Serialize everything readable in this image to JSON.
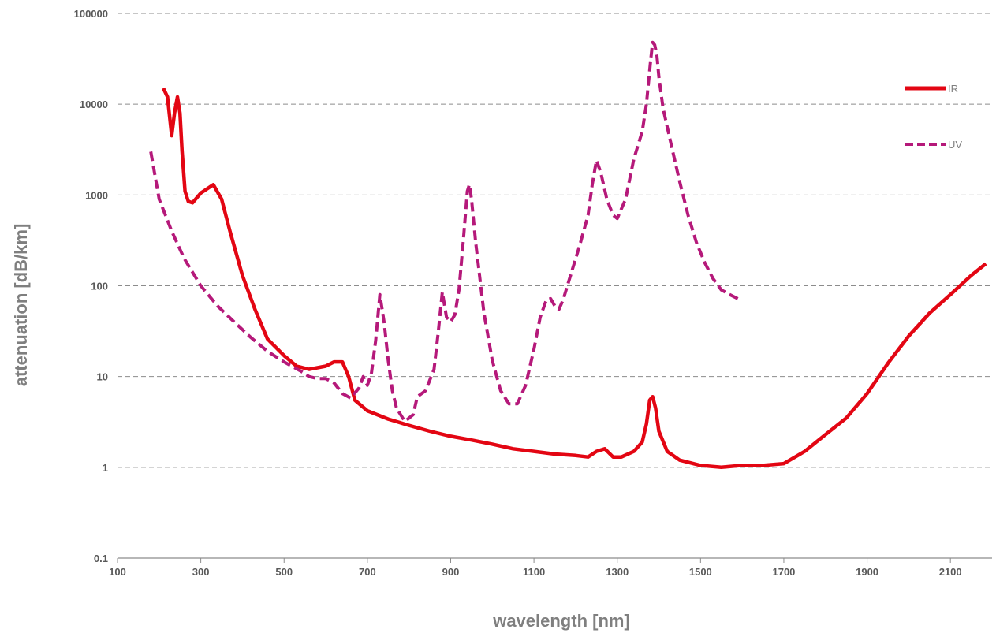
{
  "chart_data": {
    "type": "line",
    "title": "",
    "xlabel": "wavelength [nm]",
    "ylabel": "attenuation [dB/km]",
    "xlim": [
      100,
      2200
    ],
    "ylim": [
      0.1,
      100000
    ],
    "yscale": "log",
    "grid": "horizontal dashed",
    "legend_position": "right",
    "x_ticks": [
      "100",
      "300",
      "500",
      "700",
      "900",
      "1100",
      "1300",
      "1500",
      "1700",
      "1900",
      "2100"
    ],
    "y_ticks": [
      "0.1",
      "1",
      "10",
      "100",
      "1000",
      "10000",
      "100000"
    ],
    "series": [
      {
        "name": "IR",
        "color": "#e30613",
        "style": "solid",
        "x": [
          210,
          220,
          230,
          237,
          244,
          250,
          255,
          262,
          270,
          280,
          300,
          330,
          350,
          370,
          400,
          430,
          460,
          500,
          530,
          560,
          600,
          620,
          640,
          655,
          670,
          700,
          750,
          800,
          850,
          900,
          950,
          1000,
          1050,
          1100,
          1150,
          1200,
          1230,
          1250,
          1270,
          1290,
          1310,
          1340,
          1360,
          1370,
          1378,
          1385,
          1392,
          1400,
          1420,
          1450,
          1500,
          1550,
          1600,
          1650,
          1700,
          1750,
          1800,
          1850,
          1900,
          1950,
          2000,
          2050,
          2100,
          2150,
          2185
        ],
        "y": [
          15000,
          12000,
          4500,
          8000,
          12000,
          8000,
          3000,
          1100,
          850,
          820,
          1050,
          1300,
          900,
          400,
          130,
          55,
          26,
          17,
          13,
          12,
          13,
          14.5,
          14.5,
          10,
          5.5,
          4.2,
          3.4,
          2.9,
          2.5,
          2.2,
          2.0,
          1.8,
          1.6,
          1.5,
          1.4,
          1.35,
          1.3,
          1.5,
          1.6,
          1.3,
          1.3,
          1.5,
          1.9,
          3.0,
          5.5,
          6.0,
          4.5,
          2.5,
          1.5,
          1.2,
          1.05,
          1.0,
          1.05,
          1.05,
          1.1,
          1.5,
          2.3,
          3.5,
          6.5,
          14,
          28,
          50,
          80,
          130,
          175
        ]
      },
      {
        "name": "UV",
        "color": "#b5197a",
        "style": "dashed",
        "x": [
          180,
          200,
          230,
          260,
          300,
          340,
          380,
          420,
          460,
          500,
          540,
          560,
          580,
          600,
          620,
          640,
          660,
          680,
          690,
          700,
          710,
          720,
          730,
          740,
          750,
          760,
          770,
          790,
          810,
          820,
          840,
          860,
          870,
          880,
          890,
          900,
          910,
          920,
          930,
          940,
          945,
          950,
          960,
          980,
          1000,
          1020,
          1040,
          1060,
          1080,
          1100,
          1115,
          1130,
          1140,
          1150,
          1160,
          1170,
          1190,
          1210,
          1230,
          1240,
          1250,
          1260,
          1275,
          1290,
          1300,
          1320,
          1340,
          1360,
          1370,
          1380,
          1385,
          1390,
          1395,
          1400,
          1410,
          1430,
          1450,
          1470,
          1490,
          1510,
          1530,
          1550,
          1570,
          1595
        ],
        "y": [
          3000,
          900,
          400,
          200,
          100,
          60,
          40,
          27,
          19,
          14.5,
          11.5,
          10,
          9.5,
          9.5,
          8.5,
          6.5,
          5.8,
          7.5,
          10,
          8,
          11,
          25,
          80,
          40,
          15,
          7,
          4.5,
          3.2,
          3.8,
          6.0,
          7.0,
          12,
          30,
          85,
          45,
          40,
          48,
          90,
          300,
          1100,
          1300,
          900,
          300,
          50,
          15,
          7,
          5,
          5,
          8,
          20,
          45,
          70,
          72,
          60,
          55,
          70,
          140,
          280,
          600,
          1300,
          2400,
          1800,
          900,
          600,
          550,
          900,
          2500,
          5000,
          10000,
          30000,
          48000,
          45000,
          35000,
          20000,
          9000,
          3500,
          1400,
          600,
          300,
          180,
          120,
          90,
          80,
          70
        ]
      }
    ]
  }
}
